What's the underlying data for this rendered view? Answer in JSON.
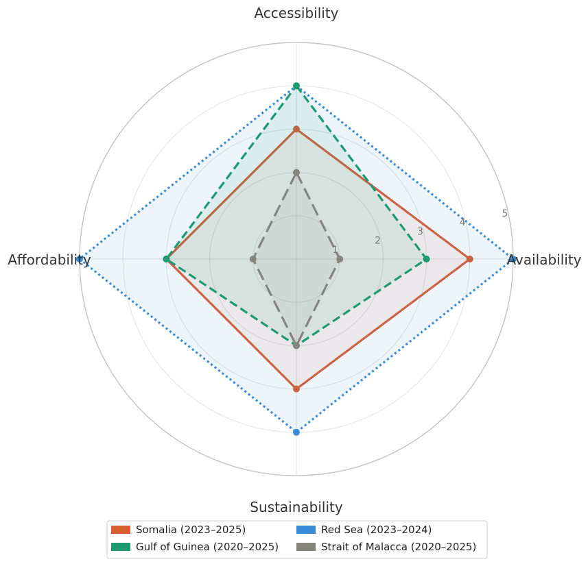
{
  "chart_data": {
    "type": "radar",
    "title": "",
    "axes": [
      "Accessibility",
      "Availability",
      "Sustainability",
      "Affordability"
    ],
    "rmax": 5,
    "rticks": [
      "1",
      "2",
      "3",
      "4",
      "5"
    ],
    "grid": true,
    "legend_position": "bottom",
    "series": [
      {
        "name": "Somalia (2023–2025)",
        "values": [
          3,
          4,
          3,
          3
        ],
        "color": "#d95f33",
        "style": "solid"
      },
      {
        "name": "Red Sea (2023–2024)",
        "values": [
          4,
          5,
          4,
          5
        ],
        "color": "#3a8bd8",
        "style": "dotted"
      },
      {
        "name": "Gulf of Guinea (2020–2025)",
        "values": [
          4,
          3,
          2,
          3
        ],
        "color": "#1e9a72",
        "style": "dashed"
      },
      {
        "name": "Strait of Malacca (2020–2025)",
        "values": [
          2,
          1,
          2,
          1
        ],
        "color": "#85857d",
        "style": "longdash"
      }
    ]
  }
}
